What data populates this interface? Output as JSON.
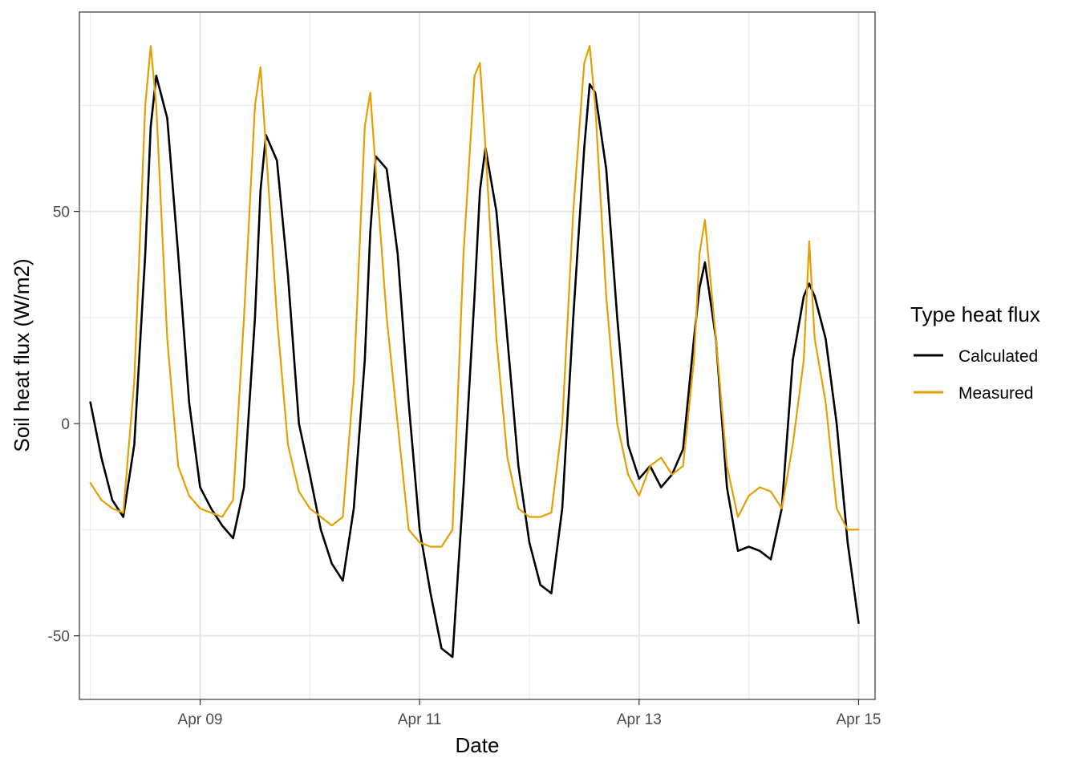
{
  "chart_data": {
    "type": "line",
    "title": "",
    "xlabel": "Date",
    "ylabel": "Soil heat flux (W/m2)",
    "xlim_days": [
      7.9,
      15.15
    ],
    "ylim": [
      -65,
      97
    ],
    "xticks": [
      {
        "value": 9,
        "label": "Apr 09"
      },
      {
        "value": 11,
        "label": "Apr 11"
      },
      {
        "value": 13,
        "label": "Apr 13"
      },
      {
        "value": 15,
        "label": "Apr 15"
      }
    ],
    "yticks": [
      {
        "value": -50,
        "label": "-50"
      },
      {
        "value": 0,
        "label": "0"
      },
      {
        "value": 50,
        "label": "50"
      }
    ],
    "legend": {
      "title": "Type heat flux",
      "position": "right"
    },
    "series": [
      {
        "name": "Calculated",
        "color": "#000000",
        "x": [
          8.0,
          8.1,
          8.2,
          8.3,
          8.4,
          8.5,
          8.55,
          8.6,
          8.7,
          8.8,
          8.9,
          9.0,
          9.1,
          9.2,
          9.3,
          9.4,
          9.5,
          9.55,
          9.6,
          9.7,
          9.8,
          9.9,
          10.0,
          10.1,
          10.2,
          10.3,
          10.4,
          10.5,
          10.55,
          10.6,
          10.7,
          10.8,
          10.9,
          11.0,
          11.1,
          11.2,
          11.3,
          11.4,
          11.5,
          11.55,
          11.6,
          11.7,
          11.8,
          11.9,
          12.0,
          12.1,
          12.2,
          12.3,
          12.4,
          12.5,
          12.55,
          12.6,
          12.7,
          12.8,
          12.9,
          13.0,
          13.1,
          13.2,
          13.3,
          13.4,
          13.5,
          13.55,
          13.6,
          13.7,
          13.8,
          13.9,
          14.0,
          14.1,
          14.2,
          14.3,
          14.4,
          14.5,
          14.55,
          14.6,
          14.7,
          14.8,
          14.9,
          15.0
        ],
        "values": [
          5,
          -8,
          -18,
          -22,
          -5,
          40,
          70,
          82,
          72,
          40,
          5,
          -15,
          -20,
          -24,
          -27,
          -15,
          25,
          55,
          68,
          62,
          35,
          0,
          -12,
          -25,
          -33,
          -37,
          -20,
          15,
          45,
          63,
          60,
          40,
          5,
          -25,
          -40,
          -53,
          -55,
          -15,
          30,
          55,
          65,
          50,
          20,
          -10,
          -28,
          -38,
          -40,
          -20,
          25,
          65,
          80,
          78,
          60,
          25,
          -5,
          -13,
          -10,
          -15,
          -12,
          -6,
          20,
          32,
          38,
          20,
          -15,
          -30,
          -29,
          -30,
          -32,
          -20,
          15,
          30,
          33,
          30,
          20,
          0,
          -28,
          -47
        ]
      },
      {
        "name": "Measured",
        "color": "#E69F00",
        "x": [
          8.0,
          8.1,
          8.2,
          8.3,
          8.4,
          8.5,
          8.55,
          8.6,
          8.7,
          8.8,
          8.9,
          9.0,
          9.1,
          9.2,
          9.3,
          9.4,
          9.5,
          9.55,
          9.6,
          9.7,
          9.8,
          9.9,
          10.0,
          10.1,
          10.2,
          10.3,
          10.4,
          10.5,
          10.55,
          10.6,
          10.7,
          10.8,
          10.9,
          11.0,
          11.1,
          11.2,
          11.3,
          11.4,
          11.5,
          11.55,
          11.6,
          11.7,
          11.8,
          11.9,
          12.0,
          12.1,
          12.2,
          12.3,
          12.4,
          12.5,
          12.55,
          12.6,
          12.7,
          12.8,
          12.9,
          13.0,
          13.1,
          13.2,
          13.3,
          13.4,
          13.5,
          13.55,
          13.6,
          13.7,
          13.8,
          13.9,
          14.0,
          14.1,
          14.2,
          14.3,
          14.4,
          14.5,
          14.55,
          14.6,
          14.7,
          14.8,
          14.9,
          15.0
        ],
        "values": [
          -14,
          -18,
          -20,
          -21,
          10,
          75,
          89,
          75,
          20,
          -10,
          -17,
          -20,
          -21,
          -22,
          -18,
          25,
          75,
          84,
          65,
          25,
          -5,
          -16,
          -20,
          -22,
          -24,
          -22,
          10,
          70,
          78,
          60,
          25,
          0,
          -25,
          -28,
          -29,
          -29,
          -25,
          40,
          82,
          85,
          65,
          20,
          -8,
          -20,
          -22,
          -22,
          -21,
          0,
          50,
          85,
          89,
          75,
          30,
          0,
          -12,
          -17,
          -10,
          -8,
          -12,
          -10,
          15,
          40,
          48,
          20,
          -10,
          -22,
          -17,
          -15,
          -16,
          -20,
          -5,
          15,
          43,
          20,
          5,
          -20,
          -25,
          -25
        ]
      }
    ]
  }
}
